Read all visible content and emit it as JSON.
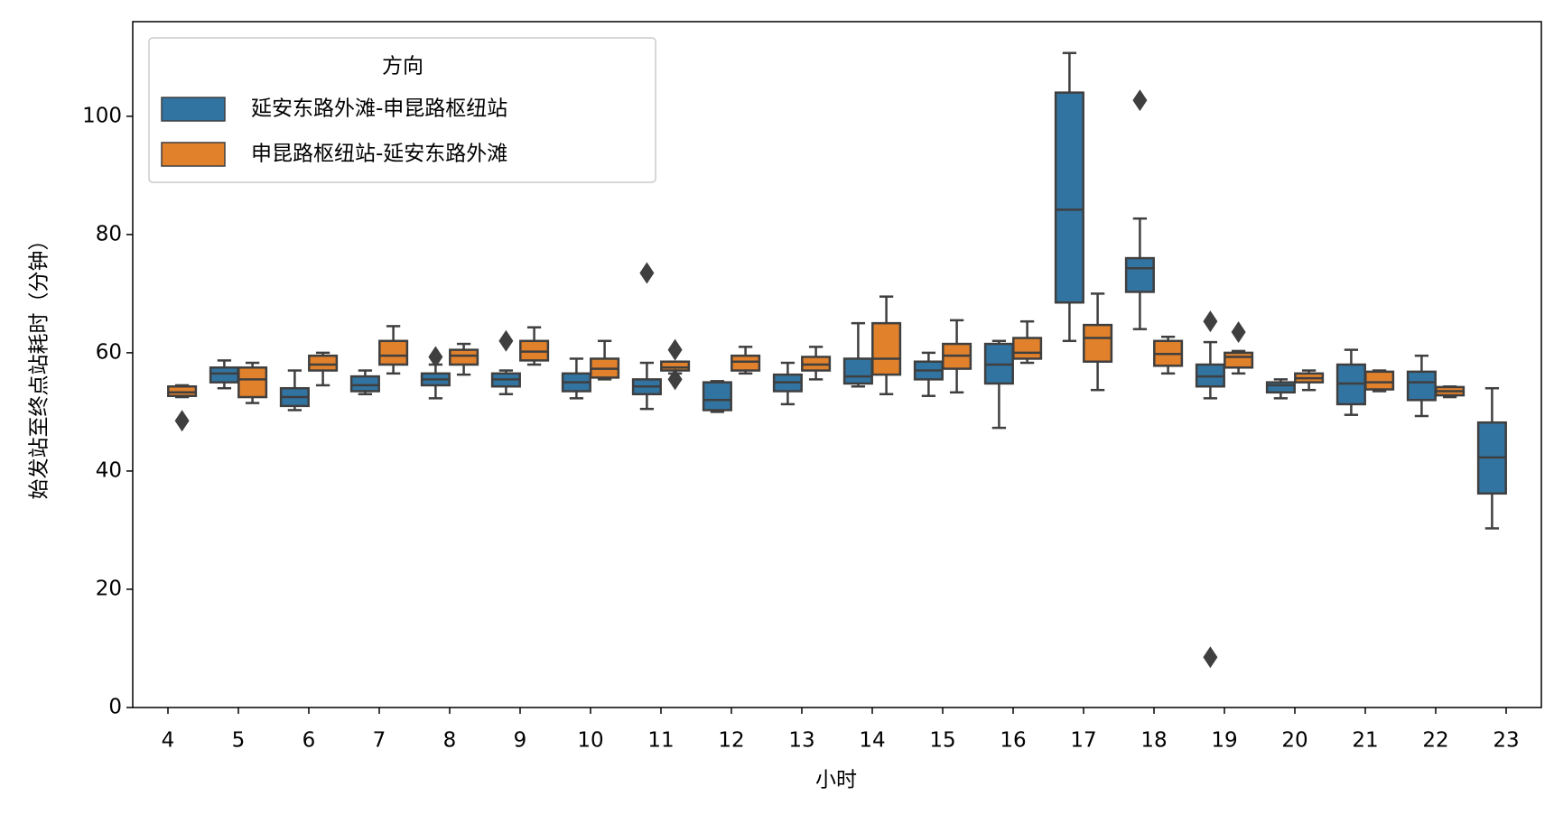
{
  "chart_data": {
    "type": "box",
    "x_label": "小时",
    "y_label": "始发站至终点站耗时（分钟）",
    "legend_title": "方向",
    "legend": "upper left",
    "edge_color": "#3f3f3f",
    "categories": [
      4,
      5,
      6,
      7,
      8,
      9,
      10,
      11,
      12,
      13,
      14,
      15,
      16,
      17,
      18,
      19,
      20,
      21,
      22,
      23
    ],
    "ylim": [
      0,
      116
    ],
    "yticks": [
      0,
      20,
      40,
      60,
      80,
      100
    ],
    "series": [
      {
        "name": "延安东路外滩-申昆路枢纽站",
        "color": "#3274a1",
        "values": [
          null,
          {
            "low": 54,
            "q1": 55,
            "median": 56.5,
            "q3": 57.5,
            "high": 58.7,
            "outliers": []
          },
          {
            "low": 50.3,
            "q1": 51,
            "median": 52.5,
            "q3": 54,
            "high": 57,
            "outliers": []
          },
          {
            "low": 53,
            "q1": 53.5,
            "median": 54.5,
            "q3": 56,
            "high": 57,
            "outliers": []
          },
          {
            "low": 52.3,
            "q1": 54.5,
            "median": 55.5,
            "q3": 56.5,
            "high": 58,
            "outliers": [
              59.3
            ]
          },
          {
            "low": 53,
            "q1": 54.3,
            "median": 55.5,
            "q3": 56.5,
            "high": 57,
            "outliers": [
              62
            ]
          },
          {
            "low": 52.3,
            "q1": 53.5,
            "median": 55,
            "q3": 56.5,
            "high": 59,
            "outliers": []
          },
          {
            "low": 50.5,
            "q1": 53,
            "median": 54.3,
            "q3": 55.5,
            "high": 58.3,
            "outliers": [
              73.5
            ]
          },
          {
            "low": 50,
            "q1": 50.3,
            "median": 52,
            "q3": 55,
            "high": 55.2,
            "outliers": []
          },
          {
            "low": 51.3,
            "q1": 53.5,
            "median": 55,
            "q3": 56.3,
            "high": 58.3,
            "outliers": []
          },
          {
            "low": 54.3,
            "q1": 54.8,
            "median": 56,
            "q3": 59,
            "high": 65,
            "outliers": []
          },
          {
            "low": 52.7,
            "q1": 55.5,
            "median": 57,
            "q3": 58.5,
            "high": 60,
            "outliers": []
          },
          {
            "low": 47.3,
            "q1": 54.8,
            "median": 58,
            "q3": 61.5,
            "high": 62,
            "outliers": []
          },
          {
            "low": 62,
            "q1": 68.5,
            "median": 84.2,
            "q3": 104,
            "high": 110.7,
            "outliers": []
          },
          {
            "low": 64,
            "q1": 70.3,
            "median": 74.3,
            "q3": 76,
            "high": 82.7,
            "outliers": [
              102.7
            ]
          },
          {
            "low": 52.3,
            "q1": 54.3,
            "median": 56,
            "q3": 58,
            "high": 61.8,
            "outliers": [
              65.3,
              8.5
            ]
          },
          {
            "low": 52.3,
            "q1": 53.3,
            "median": 54.5,
            "q3": 55,
            "high": 55.5,
            "outliers": []
          },
          {
            "low": 49.5,
            "q1": 51.3,
            "median": 54.8,
            "q3": 58,
            "high": 60.5,
            "outliers": []
          },
          {
            "low": 49.3,
            "q1": 52,
            "median": 55,
            "q3": 56.8,
            "high": 59.5,
            "outliers": []
          },
          {
            "low": 30.3,
            "q1": 36.2,
            "median": 42.3,
            "q3": 48.2,
            "high": 54,
            "outliers": []
          }
        ]
      },
      {
        "name": "申昆路枢纽站-延安东路外滩",
        "color": "#e1812c",
        "values": [
          {
            "low": 52.5,
            "q1": 52.7,
            "median": 53.3,
            "q3": 54.3,
            "high": 54.5,
            "outliers": [
              48.5
            ]
          },
          {
            "low": 51.5,
            "q1": 52.5,
            "median": 55.5,
            "q3": 57.5,
            "high": 58.3,
            "outliers": []
          },
          {
            "low": 54.5,
            "q1": 57,
            "median": 58,
            "q3": 59.5,
            "high": 60,
            "outliers": []
          },
          {
            "low": 56.5,
            "q1": 58,
            "median": 59.5,
            "q3": 62,
            "high": 64.5,
            "outliers": []
          },
          {
            "low": 56.3,
            "q1": 58,
            "median": 59.5,
            "q3": 60.5,
            "high": 61.5,
            "outliers": []
          },
          {
            "low": 58,
            "q1": 58.7,
            "median": 60.2,
            "q3": 62,
            "high": 64.3,
            "outliers": []
          },
          {
            "low": 55.5,
            "q1": 55.8,
            "median": 57.3,
            "q3": 59,
            "high": 62,
            "outliers": []
          },
          {
            "low": 56.5,
            "q1": 57,
            "median": 57.5,
            "q3": 58.5,
            "high": 58.5,
            "outliers": [
              60.5,
              55.5
            ]
          },
          {
            "low": 56.5,
            "q1": 57,
            "median": 58.5,
            "q3": 59.5,
            "high": 61,
            "outliers": []
          },
          {
            "low": 55.5,
            "q1": 57,
            "median": 58,
            "q3": 59.3,
            "high": 61,
            "outliers": []
          },
          {
            "low": 53,
            "q1": 56.3,
            "median": 59,
            "q3": 65,
            "high": 69.5,
            "outliers": []
          },
          {
            "low": 53.3,
            "q1": 57.3,
            "median": 59.5,
            "q3": 61.5,
            "high": 65.5,
            "outliers": []
          },
          {
            "low": 58.3,
            "q1": 59,
            "median": 60,
            "q3": 62.5,
            "high": 65.3,
            "outliers": []
          },
          {
            "low": 53.7,
            "q1": 58.5,
            "median": 62.5,
            "q3": 64.7,
            "high": 70,
            "outliers": []
          },
          {
            "low": 56.5,
            "q1": 57.8,
            "median": 59.8,
            "q3": 62,
            "high": 62.7,
            "outliers": []
          },
          {
            "low": 56.5,
            "q1": 57.5,
            "median": 59.3,
            "q3": 60,
            "high": 60.3,
            "outliers": [
              63.5
            ]
          },
          {
            "low": 53.7,
            "q1": 55,
            "median": 55.7,
            "q3": 56.5,
            "high": 57,
            "outliers": []
          },
          {
            "low": 53.5,
            "q1": 53.8,
            "median": 55,
            "q3": 56.8,
            "high": 57,
            "outliers": []
          },
          {
            "low": 52.5,
            "q1": 52.8,
            "median": 53.5,
            "q3": 54.2,
            "high": 54.3,
            "outliers": []
          },
          null
        ]
      }
    ]
  }
}
